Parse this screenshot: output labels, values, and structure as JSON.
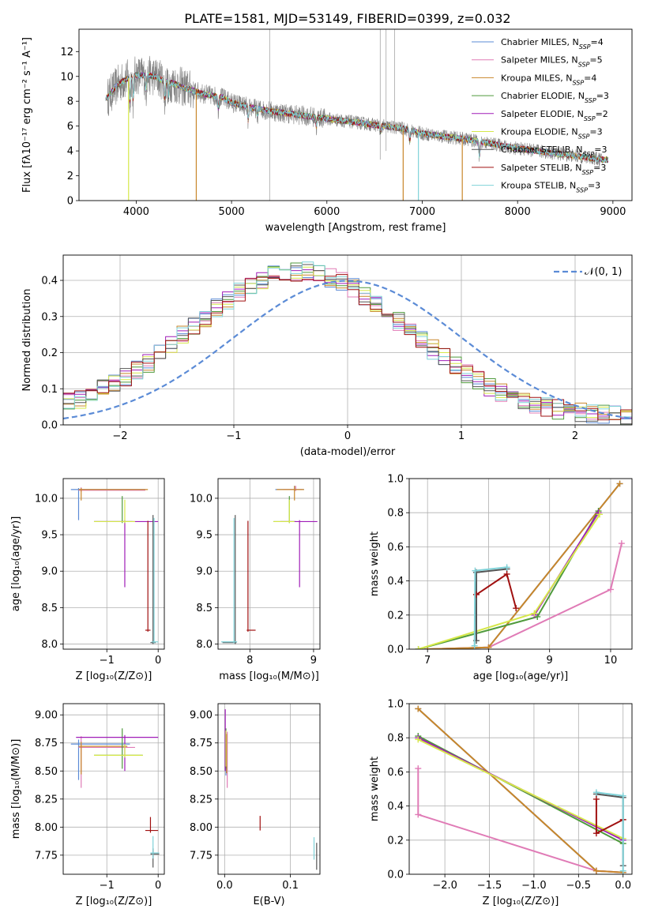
{
  "title": "PLATE=1581, MJD=53149, FIBERID=0399, z=0.032",
  "model_colors": {
    "Chabrier MILES": "#5b8bd6",
    "Salpeter MILES": "#e07bb6",
    "Kroupa MILES": "#c8862a",
    "Chabrier ELODIE": "#4f9a3c",
    "Salpeter ELODIE": "#a01db8",
    "Kroupa ELODIE": "#d6e84a",
    "Chabrier STELIB": "#555555",
    "Salpeter STELIB": "#a01010",
    "Kroupa STELIB": "#7fd2d8"
  },
  "chart_data": [
    {
      "id": "spectrum",
      "type": "line",
      "xlabel": "wavelength [Angstrom, rest frame]",
      "ylabel": "Flux [fλ10⁻¹⁷ erg cm⁻² s⁻¹ A⁻¹]",
      "xlim": [
        3400,
        9200
      ],
      "ylim": [
        0,
        13.8
      ],
      "xticks": [
        4000,
        5000,
        6000,
        7000,
        8000,
        9000
      ],
      "yticks": [
        0,
        2,
        4,
        6,
        8,
        10,
        12
      ],
      "legend_position": "top-right",
      "legend": [
        {
          "model": "Chabrier MILES",
          "nssp": "4"
        },
        {
          "model": "Salpeter MILES",
          "nssp": "5"
        },
        {
          "model": "Kroupa MILES",
          "nssp": "4"
        },
        {
          "model": "Chabrier ELODIE",
          "nssp": "3"
        },
        {
          "model": "Salpeter ELODIE",
          "nssp": "2"
        },
        {
          "model": "Kroupa ELODIE",
          "nssp": "3"
        },
        {
          "model": "Chabrier STELIB",
          "nssp": "3"
        },
        {
          "model": "Salpeter STELIB",
          "nssp": "3"
        },
        {
          "model": "Kroupa STELIB",
          "nssp": "3"
        }
      ],
      "continuum_x": [
        3700,
        3800,
        3900,
        4000,
        4100,
        4200,
        4300,
        4400,
        4500,
        4700,
        4900,
        5000,
        5200,
        5500,
        6000,
        6500,
        6800,
        7000,
        7500,
        8000,
        8500,
        8900
      ],
      "continuum_y": [
        8.3,
        9.3,
        9.8,
        10.1,
        10.1,
        10.0,
        9.6,
        9.4,
        9.1,
        8.6,
        8.3,
        7.9,
        7.5,
        7.1,
        6.6,
        6.1,
        5.8,
        5.4,
        4.9,
        4.2,
        3.7,
        3.3
      ]
    },
    {
      "id": "residuals",
      "type": "line",
      "xlabel": "(data-model)/error",
      "ylabel": "Normed distribution",
      "xlim": [
        -2.5,
        2.5
      ],
      "ylim": [
        0,
        0.47
      ],
      "xticks": [
        -2,
        -1,
        0,
        1,
        2
      ],
      "xtick_labels": [
        "−2",
        "−1",
        "0",
        "1",
        "2"
      ],
      "yticks": [
        0.0,
        0.1,
        0.2,
        0.3,
        0.4
      ],
      "ytick_labels": [
        "0.0",
        "0.1",
        "0.2",
        "0.3",
        "0.4"
      ],
      "legend_position": "top-right",
      "gaussian_label": "𝒩(0, 1)",
      "gaussian": {
        "mean": 0,
        "sigma": 1
      },
      "histogram_bin_width": 0.1
    },
    {
      "id": "age-vs-Z",
      "type": "scatter",
      "xlabel": "Z [log₁₀(Z/Z⊙)]",
      "ylabel": "age  [log₁₀(age/yr)]",
      "xlim": [
        -1.85,
        0.12
      ],
      "ylim": [
        7.93,
        10.27
      ],
      "xticks": [
        -1,
        0
      ],
      "xtick_labels": [
        "−1",
        "0"
      ],
      "yticks": [
        8.0,
        8.5,
        9.0,
        9.5,
        10.0
      ],
      "ytick_labels": [
        "8.0",
        "8.5",
        "9.0",
        "9.5",
        "10.0"
      ]
    },
    {
      "id": "age-vs-mass",
      "type": "scatter",
      "xlabel": "mass [log₁₀(M/M⊙)]",
      "xlim": [
        7.5,
        9.1
      ],
      "ylim": [
        7.93,
        10.27
      ],
      "xticks": [
        8,
        9
      ],
      "yticks": [
        8.0,
        8.5,
        9.0,
        9.5,
        10.0
      ],
      "ytick_labels": [
        "8.0",
        "8.5",
        "9.0",
        "9.5",
        "10.0"
      ]
    },
    {
      "id": "weight-vs-age",
      "type": "line",
      "xlabel": "age  [log₁₀(age/yr)]",
      "ylabel": "mass weight",
      "xlim": [
        6.7,
        10.35
      ],
      "ylim": [
        0,
        1.0
      ],
      "xticks": [
        7,
        8,
        9,
        10
      ],
      "yticks": [
        0.0,
        0.2,
        0.4,
        0.6,
        0.8,
        1.0
      ],
      "ytick_labels": [
        "0.0",
        "0.2",
        "0.4",
        "0.6",
        "0.8",
        "1.0"
      ],
      "series": [
        {
          "model": "Chabrier MILES",
          "x": [
            7.0,
            8.0,
            10.15
          ],
          "y": [
            0.0,
            0.01,
            0.97
          ]
        },
        {
          "model": "Salpeter MILES",
          "x": [
            7.0,
            8.0,
            10.0,
            10.18
          ],
          "y": [
            0.0,
            0.01,
            0.35,
            0.62
          ]
        },
        {
          "model": "Kroupa MILES",
          "x": [
            7.0,
            8.0,
            10.15
          ],
          "y": [
            0.0,
            0.01,
            0.97
          ]
        },
        {
          "model": "Chabrier ELODIE",
          "x": [
            6.85,
            8.8,
            9.8
          ],
          "y": [
            0.0,
            0.19,
            0.81
          ]
        },
        {
          "model": "Salpeter ELODIE",
          "x": [
            8.75,
            9.8
          ],
          "y": [
            0.2,
            0.8
          ]
        },
        {
          "model": "Kroupa ELODIE",
          "x": [
            6.85,
            8.75,
            9.82
          ],
          "y": [
            0.0,
            0.21,
            0.79
          ]
        },
        {
          "model": "Chabrier STELIB",
          "x": [
            7.8,
            7.8,
            8.3
          ],
          "y": [
            0.05,
            0.45,
            0.47
          ]
        },
        {
          "model": "Salpeter STELIB",
          "x": [
            7.8,
            8.3,
            8.45
          ],
          "y": [
            0.32,
            0.44,
            0.24
          ]
        },
        {
          "model": "Kroupa STELIB",
          "x": [
            7.77,
            7.78,
            8.3
          ],
          "y": [
            0.02,
            0.46,
            0.48
          ]
        }
      ]
    },
    {
      "id": "mass-vs-Z",
      "type": "scatter",
      "xlabel": "Z [log₁₀(Z/Z⊙)]",
      "ylabel": "mass [log₁₀(M/M⊙)]",
      "xlim": [
        -1.85,
        0.12
      ],
      "ylim": [
        7.58,
        9.1
      ],
      "xticks": [
        -1,
        0
      ],
      "xtick_labels": [
        "−1",
        "0"
      ],
      "yticks": [
        7.75,
        8.0,
        8.25,
        8.5,
        8.75,
        9.0
      ],
      "ytick_labels": [
        "7.75",
        "8.00",
        "8.25",
        "8.50",
        "8.75",
        "9.00"
      ]
    },
    {
      "id": "mass-vs-ebv",
      "type": "scatter",
      "xlabel": "E(B-V)",
      "xlim": [
        -0.01,
        0.145
      ],
      "ylim": [
        7.58,
        9.1
      ],
      "xticks": [
        0.0,
        0.1
      ],
      "xtick_labels": [
        "0.0",
        "0.1"
      ],
      "yticks": [
        7.75,
        8.0,
        8.25,
        8.5,
        8.75,
        9.0
      ],
      "ytick_labels": [
        "7.75",
        "8.00",
        "8.25",
        "8.50",
        "8.75",
        "9.00"
      ]
    },
    {
      "id": "weight-vs-Z",
      "type": "line",
      "xlabel": "Z [log₁₀(Z/Z⊙)]",
      "ylabel": "mass weight",
      "xlim": [
        -2.4,
        0.1
      ],
      "ylim": [
        0,
        1.0
      ],
      "xticks": [
        -2.0,
        -1.5,
        -1.0,
        -0.5,
        0.0
      ],
      "xtick_labels": [
        "−2.0",
        "−1.5",
        "−1.0",
        "−0.5",
        "0.0"
      ],
      "yticks": [
        0.0,
        0.2,
        0.4,
        0.6,
        0.8,
        1.0
      ],
      "ytick_labels": [
        "0.0",
        "0.2",
        "0.4",
        "0.6",
        "0.8",
        "1.0"
      ],
      "series": [
        {
          "model": "Chabrier MILES",
          "x": [
            -2.3,
            -0.3,
            0.0
          ],
          "y": [
            0.97,
            0.02,
            0.01
          ]
        },
        {
          "model": "Salpeter MILES",
          "x": [
            -2.3,
            -2.3,
            -0.3,
            0.0
          ],
          "y": [
            0.62,
            0.35,
            0.02,
            0.01
          ]
        },
        {
          "model": "Kroupa MILES",
          "x": [
            -2.3,
            -0.3,
            0.0
          ],
          "y": [
            0.97,
            0.02,
            0.01
          ]
        },
        {
          "model": "Chabrier ELODIE",
          "x": [
            -2.3,
            0.0
          ],
          "y": [
            0.81,
            0.18
          ]
        },
        {
          "model": "Salpeter ELODIE",
          "x": [
            -2.3,
            0.0
          ],
          "y": [
            0.8,
            0.2
          ]
        },
        {
          "model": "Kroupa ELODIE",
          "x": [
            -2.3,
            0.0
          ],
          "y": [
            0.79,
            0.21
          ]
        },
        {
          "model": "Chabrier STELIB",
          "x": [
            -0.3,
            0.0,
            0.0
          ],
          "y": [
            0.47,
            0.45,
            0.05
          ]
        },
        {
          "model": "Salpeter STELIB",
          "x": [
            -0.3,
            -0.3,
            0.0
          ],
          "y": [
            0.44,
            0.24,
            0.32
          ]
        },
        {
          "model": "Kroupa STELIB",
          "x": [
            -0.3,
            0.0,
            0.0
          ],
          "y": [
            0.48,
            0.46,
            0.02
          ]
        }
      ]
    }
  ]
}
